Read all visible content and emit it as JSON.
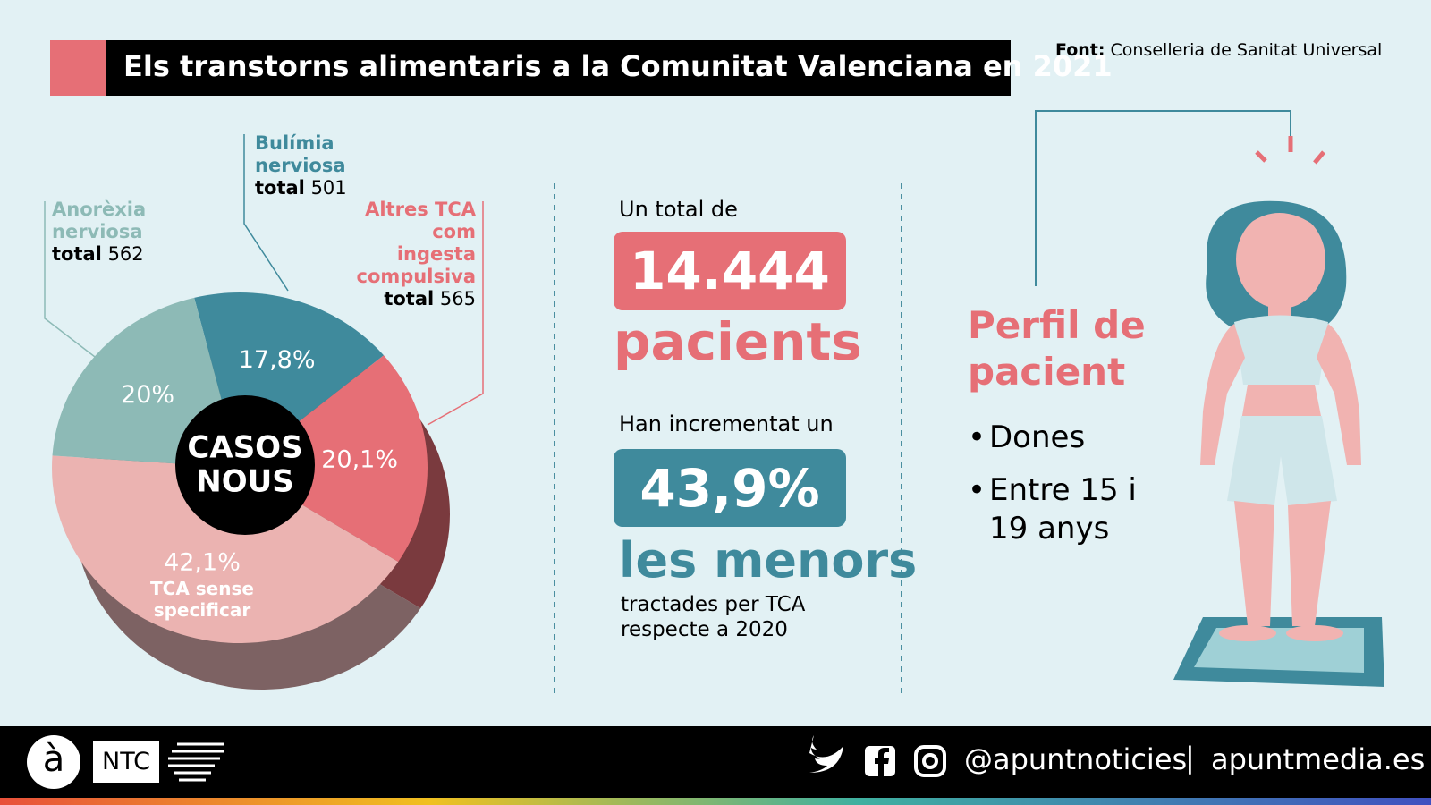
{
  "header": {
    "title": "Els transtorns alimentaris a la Comunitat Valenciana en 2021",
    "source_label": "Font:",
    "source": "Conselleria de Sanitat Universal"
  },
  "chart_data": {
    "type": "pie",
    "center_label": [
      "CASOS",
      "NOUS"
    ],
    "categories": [
      "Bulímia nerviosa",
      "Altres TCA com ingesta compulsiva",
      "TCA sense specificar",
      "Anorèxia nerviosa"
    ],
    "values": [
      17.8,
      20.1,
      42.1,
      20
    ],
    "value_labels": [
      "17,8%",
      "20,1%",
      "42,1%",
      "20%"
    ],
    "colors": [
      "#3f8a9c",
      "#e66f76",
      "#ebb3b1",
      "#8dbab6"
    ],
    "depth_colors": [
      "#2c5f6b",
      "#7a3a3e",
      "#7d6263",
      "#5f7f7c"
    ],
    "total_label": "total",
    "totals": [
      501,
      565,
      null,
      562
    ]
  },
  "stats": {
    "intro": "Un total de",
    "count": "14.444",
    "count_unit": "pacients",
    "increase_intro": "Han incrementat un",
    "increase": "43,9%",
    "increase_subject": "les menors",
    "increase_note": [
      "tractades per TCA",
      "respecte a 2020"
    ]
  },
  "profile": {
    "title": [
      "Perfil de",
      "pacient"
    ],
    "bullets": [
      "Dones",
      "Entre 15 i 19 anys"
    ]
  },
  "footer": {
    "logo": "à",
    "brand": "NTC",
    "handle": "@apuntnoticies",
    "separator": "|",
    "site": "apuntmedia.es"
  }
}
